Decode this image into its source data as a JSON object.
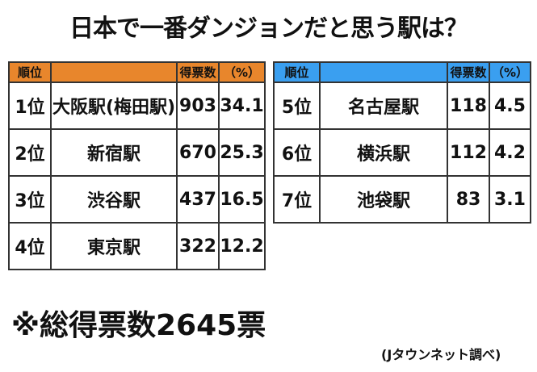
{
  "title": "日本で一番ダンジョンだと思う駅は？",
  "headers": {
    "rank": "順位",
    "station": "",
    "votes": "得票数",
    "pct": "（%）"
  },
  "left_rows": [
    {
      "rank": "1位",
      "station": "大阪駅(梅田駅)",
      "votes": "903",
      "pct": "34.1"
    },
    {
      "rank": "2位",
      "station": "新宿駅",
      "votes": "670",
      "pct": "25.3"
    },
    {
      "rank": "3位",
      "station": "渋谷駅",
      "votes": "437",
      "pct": "16.5"
    },
    {
      "rank": "4位",
      "station": "東京駅",
      "votes": "322",
      "pct": "12.2"
    }
  ],
  "right_rows": [
    {
      "rank": "5位",
      "station": "名古屋駅",
      "votes": "118",
      "pct": "4.5"
    },
    {
      "rank": "6位",
      "station": "横浜駅",
      "votes": "112",
      "pct": "4.2"
    },
    {
      "rank": "7位",
      "station": "池袋駅",
      "votes": "83",
      "pct": "3.1"
    }
  ],
  "total": "※総得票数2645票",
  "source": "(Jタウンネット調べ)",
  "colors": {
    "left_header": "#e8862c",
    "right_header": "#3a9ff0"
  }
}
